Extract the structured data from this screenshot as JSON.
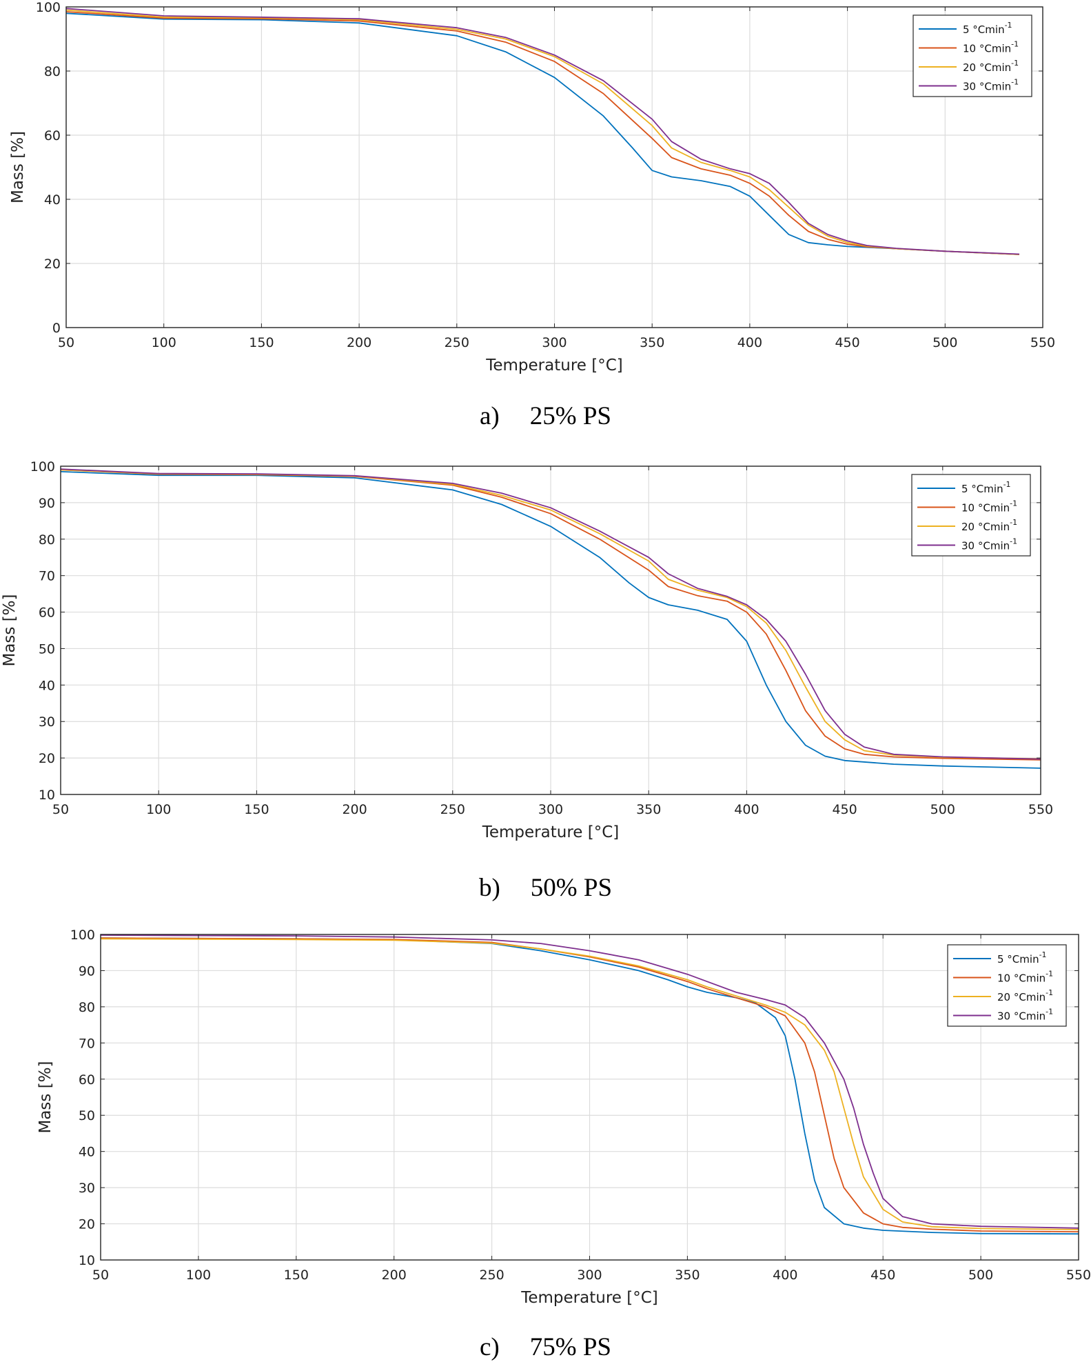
{
  "colors": {
    "grid": "#dcdcdc",
    "axis": "#262626",
    "series": [
      "#0072BD",
      "#D95319",
      "#EDB120",
      "#7E2F8E"
    ]
  },
  "chart_data": [
    {
      "type": "line",
      "caption_letter": "a)",
      "caption_text": "25% PS",
      "xlabel": "Temperature [°C]",
      "ylabel": "Mass [%]",
      "xlim": [
        50,
        550
      ],
      "ylim": [
        0,
        100
      ],
      "xticks": [
        50,
        100,
        150,
        200,
        250,
        300,
        350,
        400,
        450,
        500,
        550
      ],
      "yticks": [
        0,
        20,
        40,
        60,
        80,
        100
      ],
      "grid": true,
      "legend_position": "top-right",
      "series": [
        {
          "name": "5 °Cmin",
          "name_sup": "-1",
          "x": [
            50,
            100,
            150,
            200,
            250,
            275,
            300,
            325,
            340,
            350,
            360,
            375,
            390,
            400,
            410,
            420,
            430,
            440,
            450,
            475,
            500,
            538
          ],
          "y": [
            98,
            96.2,
            96,
            95,
            91,
            86,
            78,
            66,
            56,
            49,
            47,
            45.8,
            44,
            41,
            35,
            29,
            26.5,
            25.8,
            25.3,
            24.6,
            23.8,
            22.8
          ]
        },
        {
          "name": "10 °Cmin",
          "name_sup": "-1",
          "x": [
            50,
            100,
            150,
            200,
            250,
            275,
            300,
            325,
            350,
            360,
            375,
            390,
            400,
            410,
            420,
            430,
            440,
            450,
            460,
            475,
            500,
            538
          ],
          "y": [
            98.5,
            96.5,
            96.3,
            95.6,
            92.5,
            89,
            83,
            73,
            59,
            53,
            49.5,
            47.5,
            45,
            41,
            35,
            30,
            27.5,
            26,
            25.2,
            24.6,
            23.8,
            22.8
          ]
        },
        {
          "name": "20 °Cmin",
          "name_sup": "-1",
          "x": [
            50,
            100,
            150,
            200,
            250,
            275,
            300,
            325,
            350,
            360,
            375,
            390,
            400,
            410,
            420,
            430,
            440,
            450,
            460,
            475,
            500,
            538
          ],
          "y": [
            99,
            96.8,
            96.6,
            96,
            93,
            90,
            84.5,
            76,
            63,
            56,
            51.5,
            49,
            47,
            43,
            37.5,
            32,
            28.5,
            26.5,
            25.4,
            24.6,
            23.8,
            22.8
          ]
        },
        {
          "name": "30 °Cmin",
          "name_sup": "-1",
          "x": [
            50,
            100,
            150,
            200,
            250,
            275,
            300,
            325,
            350,
            360,
            375,
            390,
            400,
            410,
            420,
            430,
            440,
            450,
            460,
            475,
            500,
            538
          ],
          "y": [
            99.5,
            97.2,
            96.8,
            96.3,
            93.5,
            90.5,
            85,
            77,
            65,
            58,
            52.5,
            49.5,
            48,
            45,
            39,
            32.5,
            29,
            27,
            25.6,
            24.7,
            23.8,
            22.9
          ]
        }
      ]
    },
    {
      "type": "line",
      "caption_letter": "b)",
      "caption_text": "50% PS",
      "xlabel": "Temperature [°C]",
      "ylabel": "Mass [%]",
      "xlim": [
        50,
        550
      ],
      "ylim": [
        10,
        100
      ],
      "xticks": [
        50,
        100,
        150,
        200,
        250,
        300,
        350,
        400,
        450,
        500,
        550
      ],
      "yticks": [
        10,
        20,
        30,
        40,
        50,
        60,
        70,
        80,
        90,
        100
      ],
      "grid": true,
      "legend_position": "top-right",
      "series": [
        {
          "name": "5 °Cmin",
          "name_sup": "-1",
          "x": [
            50,
            100,
            150,
            200,
            250,
            275,
            300,
            325,
            340,
            350,
            360,
            375,
            390,
            400,
            410,
            420,
            430,
            440,
            450,
            475,
            500,
            550
          ],
          "y": [
            98.5,
            97.5,
            97.5,
            96.8,
            93.5,
            89.5,
            83.5,
            75,
            68,
            64,
            62,
            60.5,
            58,
            52,
            40,
            30,
            23.5,
            20.5,
            19.3,
            18.3,
            17.8,
            17.2
          ]
        },
        {
          "name": "10 °Cmin",
          "name_sup": "-1",
          "x": [
            50,
            100,
            150,
            200,
            250,
            275,
            300,
            325,
            350,
            360,
            375,
            390,
            400,
            410,
            420,
            430,
            440,
            450,
            460,
            475,
            500,
            550
          ],
          "y": [
            99,
            97.8,
            97.7,
            97.2,
            94.8,
            91.5,
            87,
            80,
            71.5,
            67,
            64.5,
            63,
            60,
            54,
            44,
            33,
            26,
            22.5,
            21,
            20.3,
            19.9,
            19.5
          ]
        },
        {
          "name": "20 °Cmin",
          "name_sup": "-1",
          "x": [
            50,
            100,
            150,
            200,
            250,
            275,
            300,
            325,
            350,
            360,
            375,
            390,
            400,
            410,
            420,
            430,
            440,
            450,
            460,
            475,
            500,
            550
          ],
          "y": [
            99,
            97.9,
            97.8,
            97.3,
            95,
            92,
            88,
            81.5,
            74,
            69,
            66,
            64,
            61.5,
            57,
            49.5,
            39.5,
            30,
            25,
            22,
            20.8,
            20.2,
            19.8
          ]
        },
        {
          "name": "30 °Cmin",
          "name_sup": "-1",
          "x": [
            50,
            100,
            150,
            200,
            250,
            275,
            300,
            325,
            350,
            360,
            375,
            390,
            400,
            410,
            420,
            430,
            440,
            450,
            460,
            475,
            500,
            550
          ],
          "y": [
            99.2,
            98,
            97.9,
            97.4,
            95.3,
            92.6,
            88.6,
            82.2,
            75,
            70.5,
            66.5,
            64.3,
            62,
            58,
            52,
            43,
            33,
            26.5,
            23,
            21,
            20.3,
            19.7
          ]
        }
      ]
    },
    {
      "type": "line",
      "caption_letter": "c)",
      "caption_text": "75% PS",
      "xlabel": "Temperature [°C]",
      "ylabel": "Mass [%]",
      "xlim": [
        50,
        550
      ],
      "ylim": [
        10,
        100
      ],
      "xticks": [
        50,
        100,
        150,
        200,
        250,
        300,
        350,
        400,
        450,
        500,
        550
      ],
      "yticks": [
        10,
        20,
        30,
        40,
        50,
        60,
        70,
        80,
        90,
        100
      ],
      "grid": true,
      "legend_position": "top-right",
      "series": [
        {
          "name": "5 °Cmin",
          "name_sup": "-1",
          "x": [
            50,
            100,
            150,
            200,
            250,
            275,
            300,
            325,
            340,
            350,
            360,
            375,
            385,
            395,
            400,
            405,
            410,
            415,
            420,
            430,
            440,
            450,
            475,
            500,
            550
          ],
          "y": [
            99,
            98.9,
            98.8,
            98.5,
            97.5,
            95.5,
            93,
            90,
            87.5,
            85.5,
            84,
            82.5,
            81,
            77,
            72,
            60,
            45,
            32,
            24.5,
            20,
            18.8,
            18.2,
            17.6,
            17.3,
            17.2
          ]
        },
        {
          "name": "10 °Cmin",
          "name_sup": "-1",
          "x": [
            50,
            100,
            150,
            200,
            250,
            275,
            300,
            325,
            350,
            360,
            375,
            390,
            400,
            410,
            415,
            420,
            425,
            430,
            440,
            450,
            460,
            475,
            500,
            550
          ],
          "y": [
            99,
            98.9,
            98.8,
            98.6,
            97.8,
            96,
            93.8,
            91,
            87,
            85,
            82.5,
            80,
            77.5,
            70,
            62,
            50,
            38,
            30,
            23,
            20,
            19,
            18.5,
            18,
            17.8
          ]
        },
        {
          "name": "20 °Cmin",
          "name_sup": "-1",
          "x": [
            50,
            100,
            150,
            200,
            250,
            275,
            300,
            325,
            350,
            360,
            375,
            390,
            400,
            410,
            420,
            425,
            430,
            435,
            440,
            450,
            460,
            475,
            500,
            550
          ],
          "y": [
            98.8,
            98.7,
            98.6,
            98.4,
            97.6,
            96,
            94,
            91.3,
            87.5,
            85.5,
            83,
            80.5,
            78.5,
            75,
            68,
            62,
            52,
            42,
            33,
            24,
            20.5,
            19.2,
            18.7,
            18.4
          ]
        },
        {
          "name": "30 °Cmin",
          "name_sup": "-1",
          "x": [
            50,
            100,
            150,
            200,
            250,
            275,
            300,
            325,
            350,
            360,
            375,
            390,
            400,
            410,
            420,
            430,
            435,
            440,
            445,
            450,
            460,
            475,
            500,
            550
          ],
          "y": [
            99.8,
            99.7,
            99.6,
            99.3,
            98.5,
            97.5,
            95.5,
            93,
            89,
            87,
            84,
            82,
            80.5,
            77,
            70,
            60,
            52,
            42,
            34,
            27,
            22,
            20,
            19.3,
            18.8
          ]
        }
      ]
    }
  ]
}
